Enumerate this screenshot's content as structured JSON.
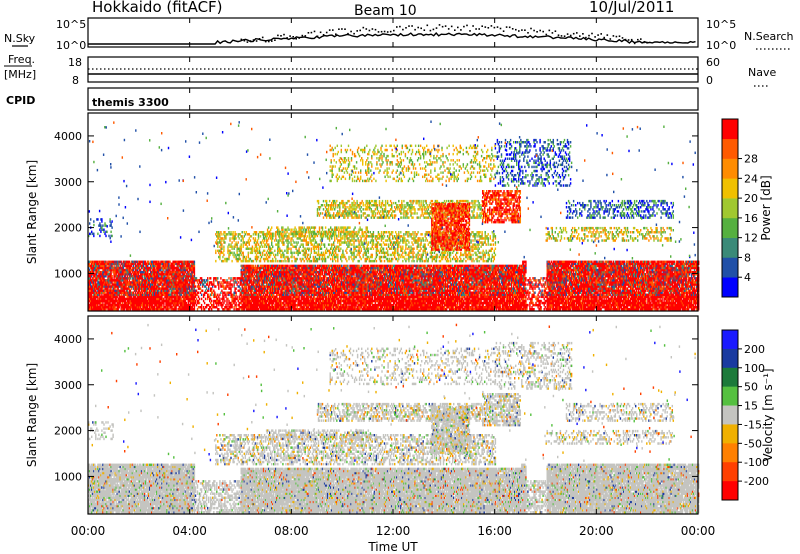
{
  "header": {
    "station": "Hokkaido (fitACF)",
    "beam": "Beam 10",
    "date": "10/Jul/2011"
  },
  "ancillary": {
    "nsky_label": "N.Sky",
    "nsky_ticks": [
      "10^5",
      "10^0"
    ],
    "nsearch_label": "N.Search",
    "nsearch_ticks": [
      "10^5",
      "10^0"
    ],
    "freq_label": "Freq.",
    "freq_unit": "[MHz]",
    "freq_ticks": [
      "18",
      "8"
    ],
    "nave_label": "Nave",
    "nave_ticks": [
      "60",
      "0"
    ],
    "cpid_label": "CPID",
    "cpid_value": "themis 3300"
  },
  "colors": {
    "power_scale": [
      "#0000ff",
      "#2050a8",
      "#3a8a78",
      "#55b040",
      "#a0c830",
      "#f0c000",
      "#ff8c00",
      "#ff5a00",
      "#ff0000"
    ],
    "velocity_scale": [
      "#1a1aff",
      "#1a3aa0",
      "#1c7a3a",
      "#55c040",
      "#c4c4c0",
      "#f0b000",
      "#ff8000",
      "#ff4000",
      "#ff0000"
    ],
    "ground_scatter": "#c4c4c0"
  },
  "chart_data": [
    {
      "type": "heatmap",
      "title": "Power",
      "xlabel": "Time UT",
      "ylabel": "Slant Range [km]",
      "xlim_hours": [
        0,
        24
      ],
      "ylim": [
        180,
        4500
      ],
      "xticks": [
        "00:00",
        "04:00",
        "08:00",
        "12:00",
        "16:00",
        "20:00",
        "00:00"
      ],
      "yticks": [
        1000,
        2000,
        3000,
        4000
      ],
      "colorbar": {
        "label": "Power [dB]",
        "ticks": [
          "4",
          "8",
          "12",
          "16",
          "20",
          "24",
          "28"
        ]
      }
    },
    {
      "type": "heatmap",
      "title": "Velocity",
      "xlabel": "Time UT",
      "ylabel": "Slant Range [km]",
      "xlim_hours": [
        0,
        24
      ],
      "ylim": [
        180,
        4500
      ],
      "xticks": [
        "00:00",
        "04:00",
        "08:00",
        "12:00",
        "16:00",
        "20:00",
        "00:00"
      ],
      "yticks": [
        1000,
        2000,
        3000,
        4000
      ],
      "colorbar": {
        "label": "Velocity [m s⁻¹]",
        "ticks": [
          "200",
          "100",
          "50",
          "15",
          "-15",
          "-50",
          "-100",
          "-200"
        ]
      }
    }
  ]
}
